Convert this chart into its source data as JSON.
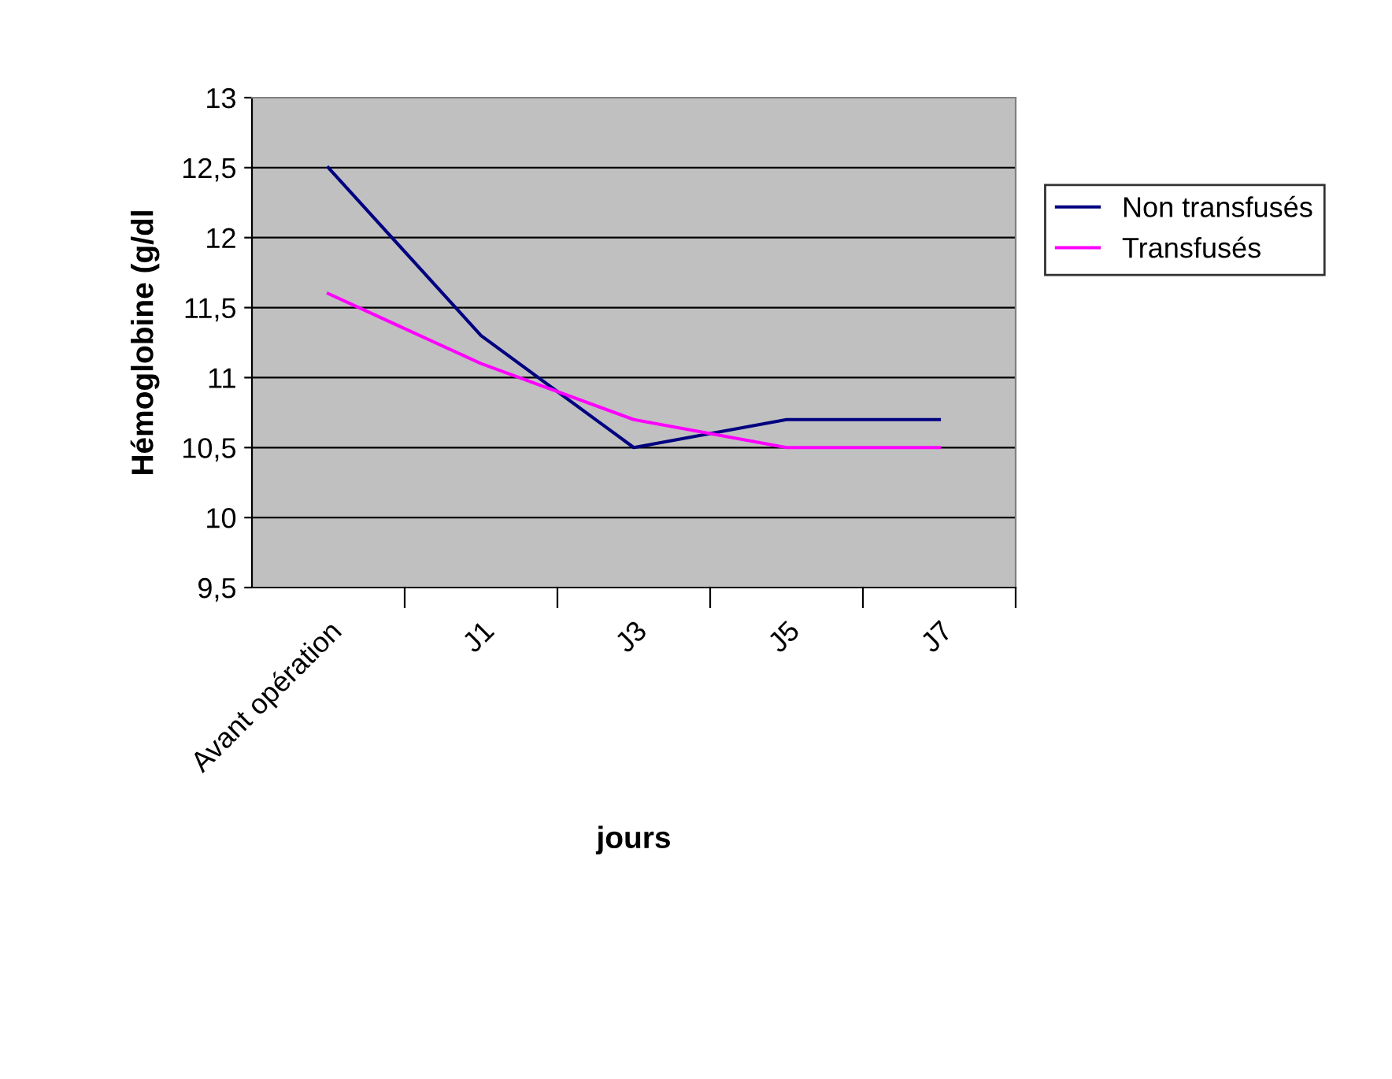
{
  "chart_data": {
    "type": "line",
    "xlabel": "jours",
    "ylabel": "Hémoglobine (g/dl",
    "categories": [
      "Avant opération",
      "J1",
      "J3",
      "J5",
      "J7"
    ],
    "series": [
      {
        "name": "Non transfusés",
        "color": "#000080",
        "values": [
          12.5,
          11.3,
          10.5,
          10.7,
          10.7
        ]
      },
      {
        "name": "Transfusés",
        "color": "#ff00ff",
        "values": [
          11.6,
          11.1,
          10.7,
          10.5,
          10.5
        ]
      }
    ],
    "ylim": [
      9.5,
      13
    ],
    "yticks": [
      {
        "value": 9.5,
        "label": "9,5"
      },
      10,
      {
        "value": 10.5,
        "label": "10,5"
      },
      11,
      {
        "value": 11.5,
        "label": "11,5"
      },
      12,
      {
        "value": 12.5,
        "label": "12,5"
      },
      13
    ],
    "grid": "y",
    "legend": "right",
    "marker": "none",
    "line_style": "solid"
  }
}
